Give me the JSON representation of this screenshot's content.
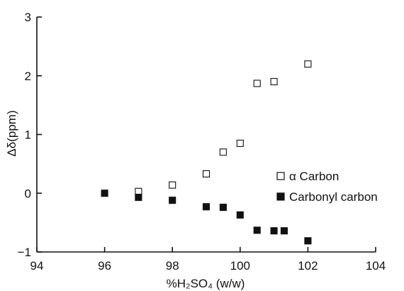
{
  "chart_data": {
    "type": "scatter",
    "title": "",
    "xlabel": "%H₂SO₄ (w/w)",
    "ylabel": "Δδ(ppm)",
    "xlim": [
      94,
      104
    ],
    "ylim": [
      -1,
      3
    ],
    "x_ticks": [
      "94",
      "96",
      "98",
      "100",
      "102",
      "104"
    ],
    "y_ticks": [
      "−1",
      "0",
      "1",
      "2",
      "3"
    ],
    "grid": false,
    "legend_position": "right",
    "series": [
      {
        "name": "α Carbon",
        "marker": "open-square",
        "color": "#111111",
        "points": [
          {
            "x": 97.0,
            "y": 0.03
          },
          {
            "x": 98.0,
            "y": 0.14
          },
          {
            "x": 99.0,
            "y": 0.33
          },
          {
            "x": 99.5,
            "y": 0.7
          },
          {
            "x": 100.0,
            "y": 0.85
          },
          {
            "x": 100.5,
            "y": 1.87
          },
          {
            "x": 101.0,
            "y": 1.9
          },
          {
            "x": 102.0,
            "y": 2.2
          }
        ]
      },
      {
        "name": "Carbonyl carbon",
        "marker": "filled-square",
        "color": "#111111",
        "points": [
          {
            "x": 96.0,
            "y": 0.0
          },
          {
            "x": 97.0,
            "y": -0.07
          },
          {
            "x": 98.0,
            "y": -0.12
          },
          {
            "x": 99.0,
            "y": -0.23
          },
          {
            "x": 99.5,
            "y": -0.24
          },
          {
            "x": 100.0,
            "y": -0.37
          },
          {
            "x": 100.5,
            "y": -0.63
          },
          {
            "x": 101.0,
            "y": -0.64
          },
          {
            "x": 101.3,
            "y": -0.64
          },
          {
            "x": 102.0,
            "y": -0.81
          }
        ]
      }
    ]
  }
}
